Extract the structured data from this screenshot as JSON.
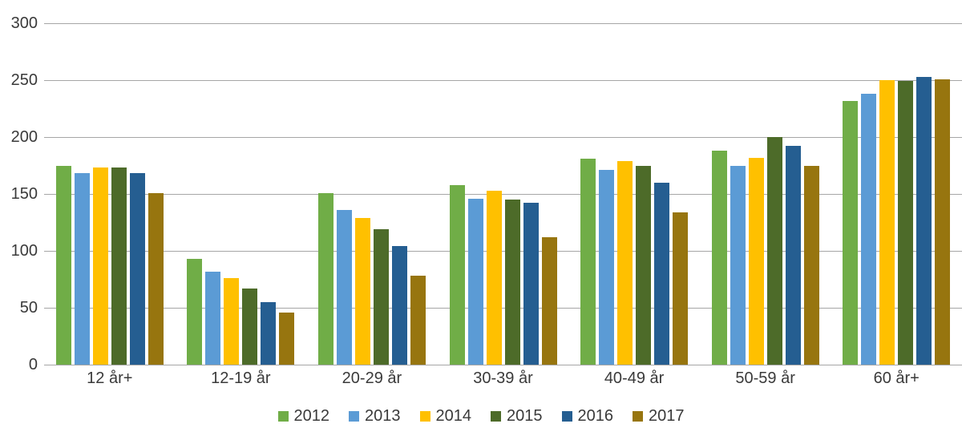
{
  "chart_data": {
    "type": "bar",
    "title": "",
    "categories": [
      "12 år+",
      "12-19 år",
      "20-29 år",
      "30-39 år",
      "40-49 år",
      "50-59 år",
      "60 år+"
    ],
    "series": [
      {
        "name": "2012",
        "color": "#70AD47",
        "values": [
          175,
          93,
          151,
          158,
          181,
          188,
          232
        ]
      },
      {
        "name": "2013",
        "color": "#5B9BD5",
        "values": [
          168,
          82,
          136,
          146,
          171,
          175,
          238
        ]
      },
      {
        "name": "2014",
        "color": "#FFC000",
        "values": [
          173,
          76,
          129,
          153,
          179,
          182,
          250
        ]
      },
      {
        "name": "2015",
        "color": "#4D6B29",
        "values": [
          173,
          67,
          119,
          145,
          175,
          200,
          249
        ]
      },
      {
        "name": "2016",
        "color": "#255E91",
        "values": [
          168,
          55,
          104,
          142,
          160,
          192,
          253
        ]
      },
      {
        "name": "2017",
        "color": "#97750F",
        "values": [
          151,
          46,
          78,
          112,
          134,
          175,
          251
        ]
      }
    ],
    "y_axis": {
      "min": 0,
      "max": 300,
      "step": 50,
      "ticks": [
        0,
        50,
        100,
        150,
        200,
        250,
        300
      ]
    },
    "grid": true,
    "legend_position": "bottom",
    "gridline_color": "#A6A6A6",
    "text_color": "#3A3A3A",
    "background_color": "#FFFFFF"
  }
}
